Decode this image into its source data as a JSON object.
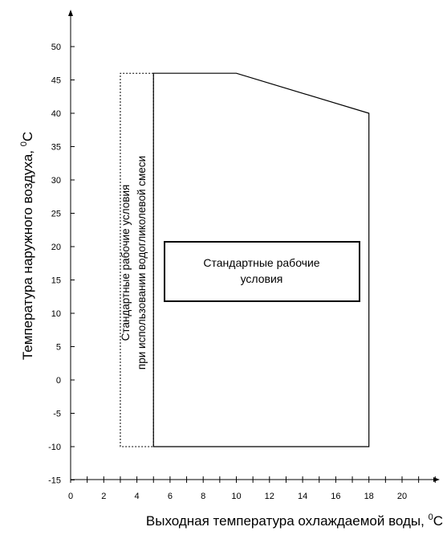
{
  "chart_data": {
    "type": "area",
    "xlabel": "Выходная температура охлаждаемой воды, ",
    "xlabel_unit": "0C",
    "ylabel": "Температура наружного воздуха, ",
    "ylabel_unit": "0C",
    "xlim": [
      0,
      22
    ],
    "ylim": [
      -15,
      55
    ],
    "x_ticks": [
      0,
      2,
      4,
      6,
      8,
      10,
      12,
      14,
      16,
      18,
      20
    ],
    "x_minor_step": 1,
    "y_ticks": [
      -15,
      -10,
      -5,
      0,
      5,
      10,
      15,
      20,
      25,
      30,
      35,
      40,
      45,
      50
    ],
    "y_tick_labels": [
      "-15",
      "-10",
      "-5",
      "0",
      "5",
      "10",
      "15",
      "20",
      "25",
      "30",
      "35",
      "40",
      "45",
      "50"
    ],
    "x_tick_labels": [
      "0",
      "2",
      "4",
      "6",
      "8",
      "10",
      "12",
      "14",
      "16",
      "18",
      "20"
    ],
    "regions": [
      {
        "name": "standard",
        "style": "solid",
        "polygon": [
          [
            5,
            -10
          ],
          [
            5,
            46
          ],
          [
            10,
            46
          ],
          [
            18,
            40
          ],
          [
            18,
            -10
          ]
        ],
        "label_lines": [
          "Стандартные рабочие",
          "условия"
        ]
      },
      {
        "name": "glycol",
        "style": "dashed",
        "polygon": [
          [
            3,
            -10
          ],
          [
            3,
            46
          ],
          [
            5,
            46
          ],
          [
            5,
            -10
          ]
        ],
        "label_lines": [
          "Стандартные рабочие условия",
          "при использовании водогликолевой смеси"
        ]
      }
    ],
    "grid": false,
    "colors": {
      "line": "#000000",
      "background": "#ffffff"
    }
  }
}
